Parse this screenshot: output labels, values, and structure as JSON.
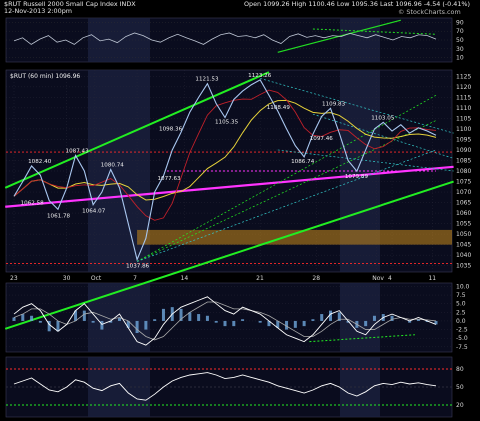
{
  "header": {
    "symbol_line": "$RUT Russell 2000 Small Cap Index INDX",
    "date_line": "12-Nov-2013 2:00pm",
    "open_label": "Open",
    "open": "1099.26",
    "high_label": "High",
    "high": "1100.46",
    "low_label": "Low",
    "low": "1095.36",
    "last_label": "Last",
    "last": "1096.96",
    "change": "-4.54 (-0.41%)",
    "brand": "© StockCharts.com"
  },
  "chart_data": [
    {
      "type": "line",
      "panel": "top-indicator",
      "y_ticks": [
        "90",
        "70",
        "50",
        "30",
        "10"
      ],
      "ylim": [
        0,
        100
      ],
      "values": [
        48,
        55,
        40,
        52,
        60,
        45,
        50,
        40,
        55,
        62,
        48,
        52,
        44,
        58,
        66,
        60,
        50,
        45,
        55,
        63,
        55,
        48,
        40,
        52,
        62,
        66,
        58,
        60,
        55,
        62,
        50,
        42,
        58,
        64,
        56,
        60,
        55,
        60,
        58,
        65,
        60,
        55,
        62,
        56,
        50,
        58,
        55,
        62,
        60,
        52
      ],
      "color": "#bfc7d5"
    },
    {
      "type": "line",
      "panel": "price",
      "title": "$RUT (60 min) 1096.96",
      "x_tick_labels": [
        "23",
        "30",
        "Oct",
        "7",
        "14",
        "21",
        "28",
        "Nov",
        "4",
        "11"
      ],
      "y_ticks": [
        1035,
        1040,
        1045,
        1050,
        1055,
        1060,
        1065,
        1070,
        1075,
        1080,
        1085,
        1090,
        1095,
        1100,
        1105,
        1110,
        1115,
        1120,
        1125
      ],
      "ylim": [
        1032,
        1128
      ],
      "x": [
        0,
        5,
        10,
        15,
        20,
        25,
        30,
        35,
        40,
        45,
        50,
        55,
        60,
        65,
        70,
        75,
        80,
        85,
        90,
        95,
        100,
        105,
        110,
        115,
        120,
        125,
        130,
        135,
        140,
        145,
        150,
        155,
        160,
        165,
        170,
        175,
        180,
        185,
        190,
        195,
        200,
        205,
        210,
        215,
        220,
        225,
        230,
        235,
        240
      ],
      "values": [
        1068,
        1075,
        1082.4,
        1078,
        1066,
        1061.8,
        1072,
        1087.4,
        1080,
        1064,
        1070,
        1080.7,
        1072,
        1055,
        1037.9,
        1048,
        1070,
        1077.6,
        1090,
        1098.4,
        1108,
        1115,
        1121.5,
        1112,
        1105.4,
        1114,
        1118,
        1121,
        1123.3,
        1116,
        1108.5,
        1100,
        1092,
        1086.7,
        1097.5,
        1106,
        1109.8,
        1098,
        1085,
        1079.9,
        1090,
        1100,
        1103.1,
        1099,
        1102,
        1098,
        1100.5,
        1099,
        1097
      ]
    },
    {
      "type": "line",
      "panel": "macd",
      "y_ticks": [
        "10.0",
        "7.5",
        "5.0",
        "2.5",
        "0.0",
        "-2.5",
        "-5.0",
        "-7.5"
      ],
      "ylim": [
        -9,
        11
      ],
      "values": [
        2,
        4,
        5,
        3,
        -1,
        -3,
        -1,
        3,
        5,
        2,
        -1,
        0,
        2,
        -2,
        -6,
        -7,
        -5,
        -1,
        2,
        4,
        5,
        6,
        7,
        5,
        3,
        2,
        4,
        3,
        2,
        0,
        -2,
        -4,
        -5,
        -6,
        -4,
        -1,
        2,
        3,
        0,
        -3,
        -4,
        -1,
        1,
        2,
        1,
        0,
        1,
        0,
        -1
      ],
      "signal": [
        1,
        2,
        3.5,
        3.5,
        2,
        0,
        -1,
        0,
        2,
        2.5,
        1.5,
        0.5,
        1,
        0,
        -2.5,
        -4.5,
        -5.5,
        -4.5,
        -2,
        0.5,
        2.5,
        4,
        5.5,
        5.5,
        4.5,
        3.5,
        3.5,
        3,
        2.5,
        1.5,
        0,
        -1.5,
        -3,
        -4.5,
        -4.5,
        -3,
        -1,
        0.5,
        0.5,
        -1,
        -2.5,
        -2.5,
        -1,
        0.5,
        1,
        0.5,
        0.5,
        0.3,
        0
      ],
      "color": "#ffffff",
      "signal_color": "#aaaaaa"
    },
    {
      "type": "line",
      "panel": "rsi",
      "y_ticks": [
        "80",
        "50",
        "20"
      ],
      "ylim": [
        0,
        100
      ],
      "values": [
        55,
        60,
        65,
        55,
        45,
        42,
        50,
        62,
        58,
        48,
        44,
        52,
        56,
        40,
        30,
        28,
        38,
        50,
        60,
        66,
        70,
        72,
        74,
        70,
        64,
        66,
        70,
        66,
        62,
        58,
        52,
        48,
        44,
        40,
        45,
        52,
        56,
        50,
        40,
        35,
        42,
        52,
        56,
        54,
        58,
        55,
        57,
        54,
        52
      ],
      "color": "#ffffff"
    }
  ]
}
